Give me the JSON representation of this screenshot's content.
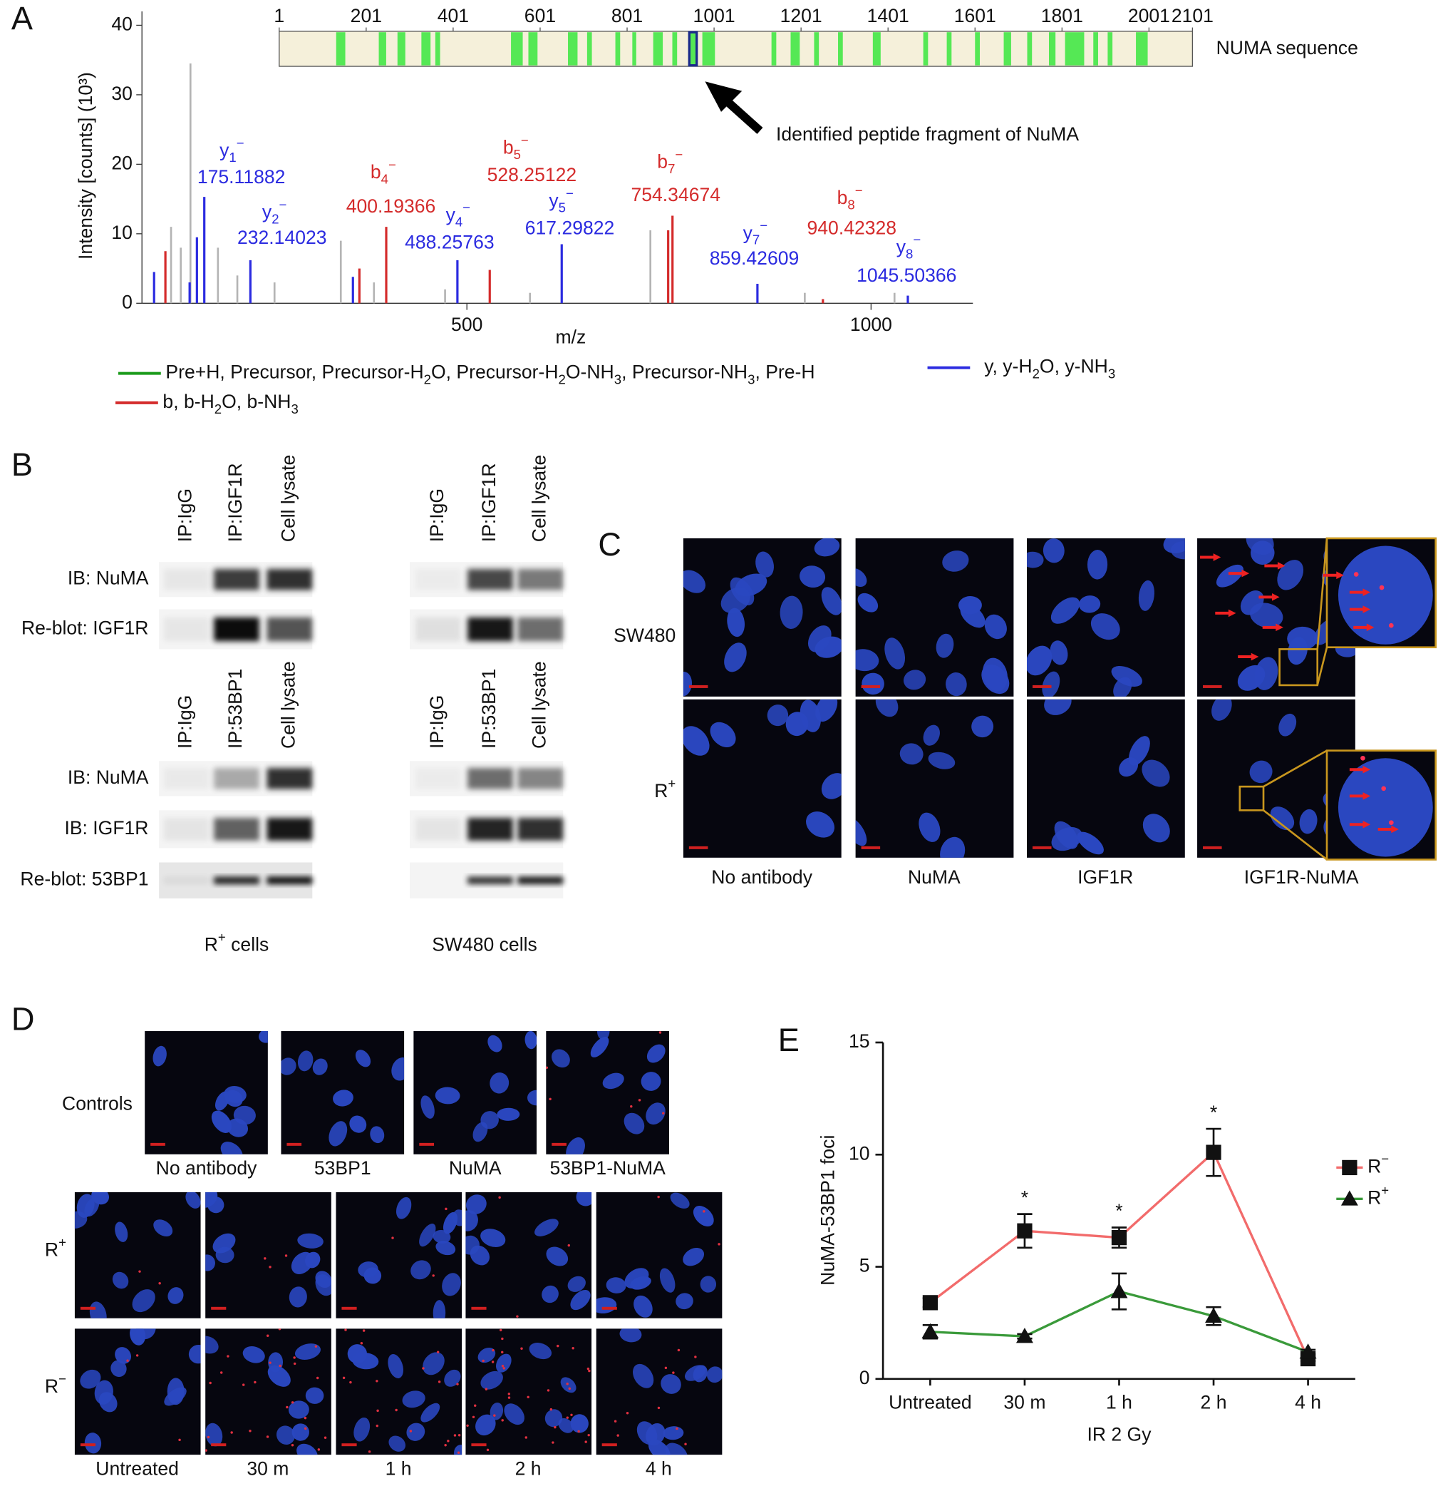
{
  "panel_labels": [
    "A",
    "B",
    "C",
    "D",
    "E"
  ],
  "chart_data": [
    {
      "type": "sequence",
      "label": "NUMA sequence",
      "xlim": [
        1,
        2101
      ],
      "xticks": [
        1,
        201,
        401,
        601,
        801,
        1001,
        1201,
        1401,
        1601,
        1801,
        2001,
        2101
      ],
      "color": "#55e855",
      "background": "#f5f0da",
      "coverage": [
        [
          132,
          153
        ],
        [
          230,
          247
        ],
        [
          273,
          291
        ],
        [
          328,
          349
        ],
        [
          360,
          371
        ],
        [
          534,
          561
        ],
        [
          574,
          595
        ],
        [
          665,
          687
        ],
        [
          709,
          720
        ],
        [
          774,
          785
        ],
        [
          813,
          822
        ],
        [
          861,
          883
        ],
        [
          905,
          916
        ],
        [
          974,
          1003
        ],
        [
          1133,
          1144
        ],
        [
          1177,
          1198
        ],
        [
          1231,
          1242
        ],
        [
          1286,
          1297
        ],
        [
          1366,
          1384
        ],
        [
          1482,
          1493
        ],
        [
          1536,
          1547
        ],
        [
          1601,
          1612
        ],
        [
          1667,
          1684
        ],
        [
          1721,
          1732
        ],
        [
          1771,
          1786
        ],
        [
          1808,
          1852
        ],
        [
          1873,
          1884
        ],
        [
          1906,
          1917
        ],
        [
          1971,
          1998
        ]
      ],
      "identified": [
        944,
        961
      ],
      "identified_color": "#1a2a8a",
      "annotation": "Identified peptide fragment of NuMA"
    },
    {
      "type": "spectrum",
      "xlabel": "m/z",
      "ylabel": "Intensity [counts] (10³)",
      "xlim": [
        98,
        1126
      ],
      "ylim": [
        0,
        42
      ],
      "xticks": [
        500,
        1000
      ],
      "yticks": [
        0,
        10,
        20,
        30,
        40
      ],
      "series": [
        {
          "name": "Pre+H, Precursor, Precursor-H2O, Precursor-H2O-NH3, Precursor-NH3, Pre-H",
          "color": "#1a9a1a",
          "x": [],
          "values": []
        },
        {
          "name": "y, y-H2O, y-NH3",
          "color": "#2b2be0",
          "x": [
            113,
            157,
            166,
            175.11882,
            232.14023,
            359,
            488.25763,
            617.29822,
            859.42609,
            1045.50366
          ],
          "values": [
            4.5,
            3,
            9.5,
            15.3,
            6.2,
            3.8,
            6.2,
            8.5,
            2.8,
            1.1
          ],
          "ion_labels": [
            null,
            null,
            null,
            {
              "ion": "y",
              "sub": "1",
              "sup": "−"
            },
            {
              "ion": "y",
              "sub": "2",
              "sup": "−"
            },
            null,
            {
              "ion": "y",
              "sub": "4",
              "sup": "−"
            },
            {
              "ion": "y",
              "sub": "5",
              "sup": "−"
            },
            {
              "ion": "y",
              "sub": "7",
              "sup": "−"
            },
            {
              "ion": "y",
              "sub": "8",
              "sup": "−"
            }
          ],
          "x_labels": [
            null,
            null,
            null,
            "175.11882",
            "232.14023",
            null,
            "488.25763",
            "617.29822",
            "859.42609",
            "1045.50366"
          ]
        },
        {
          "name": "b, b-H2O, b-NH3",
          "color": "#d42b2b",
          "x": [
            127,
            367,
            400.19366,
            528.25122,
            749,
            754.34674,
            940.42328
          ],
          "values": [
            7.5,
            5,
            11,
            4.8,
            10.5,
            12.6,
            0.6
          ],
          "ion_labels": [
            null,
            null,
            {
              "ion": "b",
              "sub": "4",
              "sup": "−"
            },
            {
              "ion": "b",
              "sub": "5",
              "sup": "−"
            },
            null,
            {
              "ion": "b",
              "sub": "7",
              "sup": "−"
            },
            {
              "ion": "b",
              "sub": "8",
              "sup": "−"
            }
          ],
          "x_labels": [
            null,
            null,
            "400.19366",
            "528.25122",
            null,
            "754.34674",
            "940.42328"
          ]
        }
      ],
      "background_peaks": {
        "color": "#b4b4b4",
        "x": [
          134,
          146,
          158,
          192,
          216,
          262,
          344,
          385,
          473,
          578,
          727,
          918,
          1029
        ],
        "values": [
          11,
          8,
          34.5,
          8,
          4,
          3,
          9,
          3,
          2,
          1.5,
          10.5,
          1.5,
          1.5
        ]
      }
    },
    {
      "type": "line",
      "ylabel": "NuMA-53BP1 foci",
      "xlabel": "IR 2 Gy",
      "categories": [
        "Untreated",
        "30 m",
        "1 h",
        "2 h",
        "4 h"
      ],
      "ylim": [
        0,
        15
      ],
      "yticks": [
        0,
        5,
        10,
        15
      ],
      "series": [
        {
          "name": "R−",
          "color": "#f26b6b",
          "marker": "square",
          "values": [
            3.4,
            6.6,
            6.3,
            10.1,
            0.9
          ],
          "errors": [
            0.2,
            0.75,
            0.45,
            1.05,
            0.1
          ]
        },
        {
          "name": "R+",
          "color": "#3a9a3a",
          "marker": "triangle",
          "values": [
            2.1,
            1.9,
            3.9,
            2.8,
            1.2
          ],
          "errors": [
            0.3,
            0.1,
            0.8,
            0.4,
            0.1
          ]
        }
      ],
      "annotations": [
        null,
        "*",
        "*",
        "*",
        null
      ]
    }
  ],
  "blots": {
    "groups": [
      "R+ cells",
      "SW480 cells"
    ],
    "sections": [
      {
        "lanes": [
          "IP:IgG",
          "IP:IGF1R",
          "Cell lysate"
        ],
        "rows": [
          "IB: NuMA",
          "Re-blot: IGF1R"
        ]
      },
      {
        "lanes": [
          "IP:IgG",
          "IP:53BP1",
          "Cell lysate"
        ],
        "rows": [
          "IB: NuMA",
          "IB: IGF1R",
          "Re-blot: 53BP1"
        ]
      }
    ]
  },
  "microscopy_c": {
    "rows": [
      "SW480",
      "R+"
    ],
    "columns": [
      "No antibody",
      "NuMA",
      "IGF1R",
      "IGF1R-NuMA"
    ]
  },
  "microscopy_d": {
    "controls_label": "Controls",
    "control_columns": [
      "No antibody",
      "53BP1",
      "NuMA",
      "53BP1-NuMA"
    ],
    "rows": [
      "R+",
      "R−"
    ],
    "columns": [
      "Untreated",
      "30 m",
      "1 h",
      "2 h",
      "4 h"
    ]
  }
}
